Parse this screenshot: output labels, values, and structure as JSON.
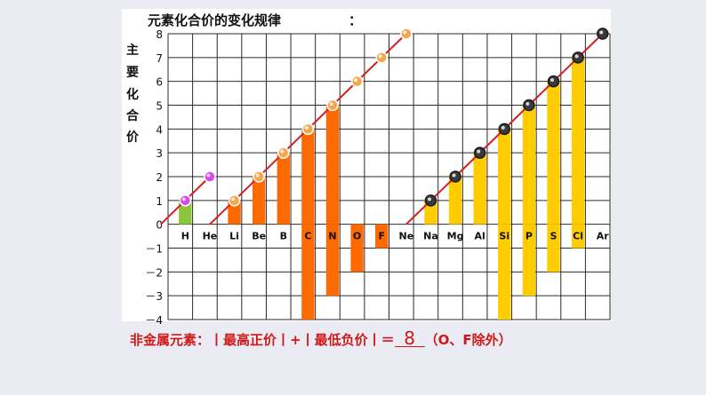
{
  "page": {
    "title": "元素化合价的变化规律",
    "title_colon": "：",
    "ylabel_chars": [
      "主",
      "要",
      "化",
      "合",
      "价"
    ],
    "rule": {
      "prefix": "非金属元素：丨最高正价丨+丨最低负价丨＝",
      "value": "8",
      "suffix": "（O、F除外）"
    }
  },
  "colors": {
    "page_bg": "#ebebf4",
    "grid": "#2a2a2a",
    "trend_line": "#d42020",
    "period1_bar": "#8cc43c",
    "period2_bar": "#ff6a00",
    "period3_bar": "#ffcc00",
    "period1_marker": "#dd44ee",
    "period2_marker": "#f4a64a",
    "period3_marker": "#3a3a3a",
    "rule_text": "#d01818"
  },
  "chart_data": {
    "type": "bar",
    "title": "元素化合价的变化规律",
    "ylabel": "主要化合价",
    "xlabel": "",
    "ylim": [
      -4,
      8
    ],
    "yticks": [
      "8",
      "7",
      "6",
      "5",
      "4",
      "3",
      "2",
      "1",
      "0",
      "－1",
      "－2",
      "－3",
      "－4"
    ],
    "grid": true,
    "legend": "none",
    "elements": [
      {
        "symbol": "H",
        "period": 1,
        "max": 1,
        "min": 0
      },
      {
        "symbol": "He",
        "period": 1,
        "max": 0,
        "min": 0
      },
      {
        "symbol": "Li",
        "period": 2,
        "max": 1,
        "min": 0
      },
      {
        "symbol": "Be",
        "period": 2,
        "max": 2,
        "min": 0
      },
      {
        "symbol": "B",
        "period": 2,
        "max": 3,
        "min": 0
      },
      {
        "symbol": "C",
        "period": 2,
        "max": 4,
        "min": -4
      },
      {
        "symbol": "N",
        "period": 2,
        "max": 5,
        "min": -3
      },
      {
        "symbol": "O",
        "period": 2,
        "max": 0,
        "min": -2
      },
      {
        "symbol": "F",
        "period": 2,
        "max": 0,
        "min": -1
      },
      {
        "symbol": "Ne",
        "period": 2,
        "max": 0,
        "min": 0
      },
      {
        "symbol": "Na",
        "period": 3,
        "max": 1,
        "min": 0
      },
      {
        "symbol": "Mg",
        "period": 3,
        "max": 2,
        "min": 0
      },
      {
        "symbol": "Al",
        "period": 3,
        "max": 3,
        "min": 0
      },
      {
        "symbol": "Si",
        "period": 3,
        "max": 4,
        "min": -4
      },
      {
        "symbol": "P",
        "period": 3,
        "max": 5,
        "min": -3
      },
      {
        "symbol": "S",
        "period": 3,
        "max": 6,
        "min": -2
      },
      {
        "symbol": "Cl",
        "period": 3,
        "max": 7,
        "min": -1
      },
      {
        "symbol": "Ar",
        "period": 3,
        "max": 0,
        "min": 0
      }
    ],
    "trend_markers": [
      {
        "x": "H",
        "y": 1,
        "period": 1
      },
      {
        "x": "He",
        "y": 2,
        "period": 1
      },
      {
        "x": "Li",
        "y": 1,
        "period": 2
      },
      {
        "x": "Be",
        "y": 2,
        "period": 2
      },
      {
        "x": "B",
        "y": 3,
        "period": 2
      },
      {
        "x": "C",
        "y": 4,
        "period": 2
      },
      {
        "x": "N",
        "y": 5,
        "period": 2
      },
      {
        "x": "O",
        "y": 6,
        "period": 2
      },
      {
        "x": "F",
        "y": 7,
        "period": 2
      },
      {
        "x": "Ne",
        "y": 8,
        "period": 2
      },
      {
        "x": "Na",
        "y": 1,
        "period": 3
      },
      {
        "x": "Mg",
        "y": 2,
        "period": 3
      },
      {
        "x": "Al",
        "y": 3,
        "period": 3
      },
      {
        "x": "Si",
        "y": 4,
        "period": 3
      },
      {
        "x": "P",
        "y": 5,
        "period": 3
      },
      {
        "x": "S",
        "y": 6,
        "period": 3
      },
      {
        "x": "Cl",
        "y": 7,
        "period": 3
      },
      {
        "x": "Ar",
        "y": 8,
        "period": 3
      }
    ]
  }
}
